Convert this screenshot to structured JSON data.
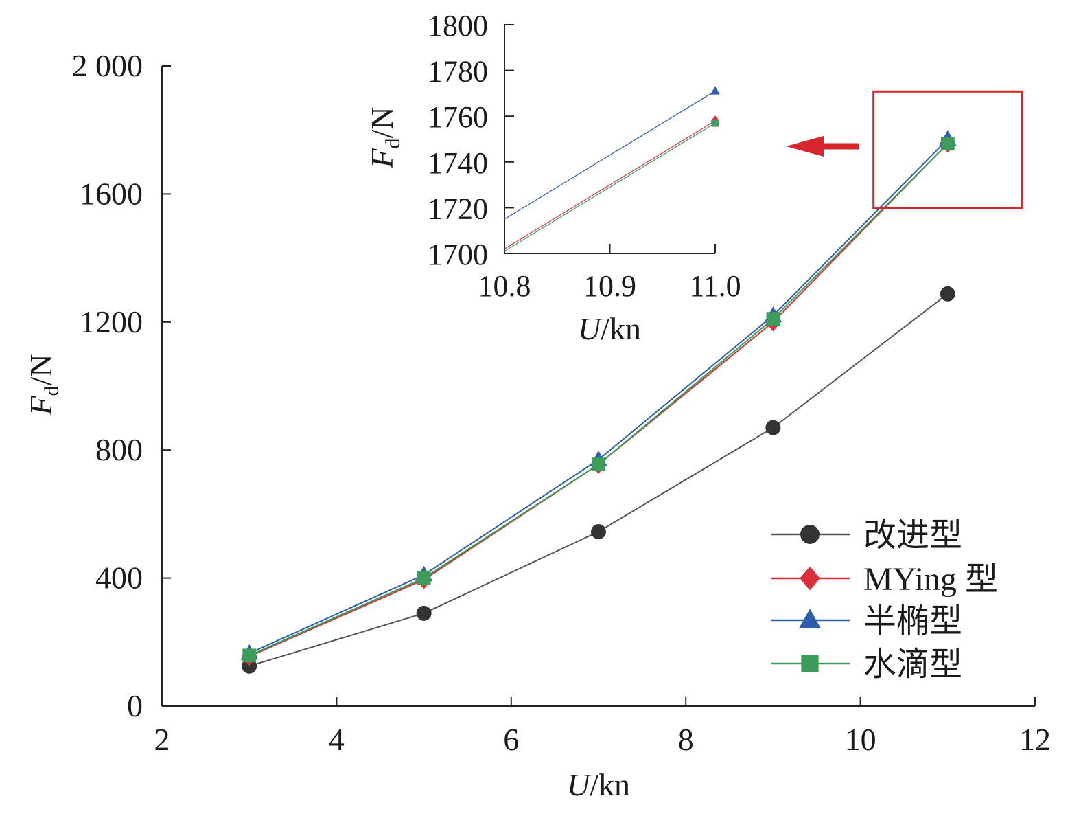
{
  "chart_data": [
    {
      "type": "line",
      "role": "main",
      "xlabel": {
        "var": "U",
        "unit": "/kn"
      },
      "ylabel": {
        "var": "F",
        "sub": "d",
        "unit": "/N"
      },
      "xlim": [
        2,
        12
      ],
      "ylim": [
        0,
        2000
      ],
      "xticks": [
        2,
        4,
        6,
        8,
        10,
        12
      ],
      "yticks": [
        0,
        400,
        800,
        1200,
        1600,
        2000
      ],
      "ytick_labels": [
        "0",
        "400",
        "800",
        "1200",
        "1600",
        "2 000"
      ],
      "legend_position": "bottom-right",
      "x": [
        3,
        5,
        7,
        9,
        11
      ],
      "series": [
        {
          "name": "改进型",
          "marker": "circle",
          "color": "#333333",
          "line_color": "#555555",
          "values": [
            125,
            290,
            545,
            870,
            1288
          ]
        },
        {
          "name": "MYing 型",
          "marker": "diamond",
          "color": "#d9303a",
          "line_color": "#d9303a",
          "values": [
            155,
            395,
            755,
            1200,
            1758
          ]
        },
        {
          "name": "半椭型",
          "marker": "triangle",
          "color": "#2e5eaa",
          "line_color": "#2e5eaa",
          "values": [
            165,
            410,
            770,
            1220,
            1771
          ]
        },
        {
          "name": "水滴型",
          "marker": "square",
          "color": "#3e9c5a",
          "line_color": "#3e9c5a",
          "values": [
            158,
            400,
            755,
            1210,
            1757
          ]
        }
      ]
    },
    {
      "type": "line",
      "role": "inset",
      "xlabel": {
        "var": "U",
        "unit": "/kn"
      },
      "ylabel": {
        "var": "F",
        "sub": "d",
        "unit": "/N"
      },
      "xlim": [
        10.8,
        11.0
      ],
      "ylim": [
        1700,
        1800
      ],
      "xticks": [
        10.8,
        10.9,
        11.0
      ],
      "xtick_labels": [
        "10.8",
        "10.9",
        "11.0"
      ],
      "yticks": [
        1700,
        1720,
        1740,
        1760,
        1780,
        1800
      ],
      "x": [
        10.8,
        11.0
      ],
      "series": [
        {
          "name": "半椭型",
          "marker": "triangle",
          "color": "#2e5eaa",
          "values": [
            1715,
            1771
          ]
        },
        {
          "name": "MYing 型",
          "marker": "diamond",
          "color": "#d9303a",
          "values": [
            1702,
            1758
          ]
        },
        {
          "name": "水滴型",
          "marker": "square",
          "color": "#3e9c5a",
          "values": [
            1701,
            1757
          ]
        }
      ]
    }
  ],
  "annotations": {
    "highlight_box_color": "#d7262e",
    "arrow_color": "#d7262e",
    "highlight_region": {
      "x": [
        10.15,
        11.85
      ],
      "y": [
        1555,
        1920
      ]
    }
  }
}
